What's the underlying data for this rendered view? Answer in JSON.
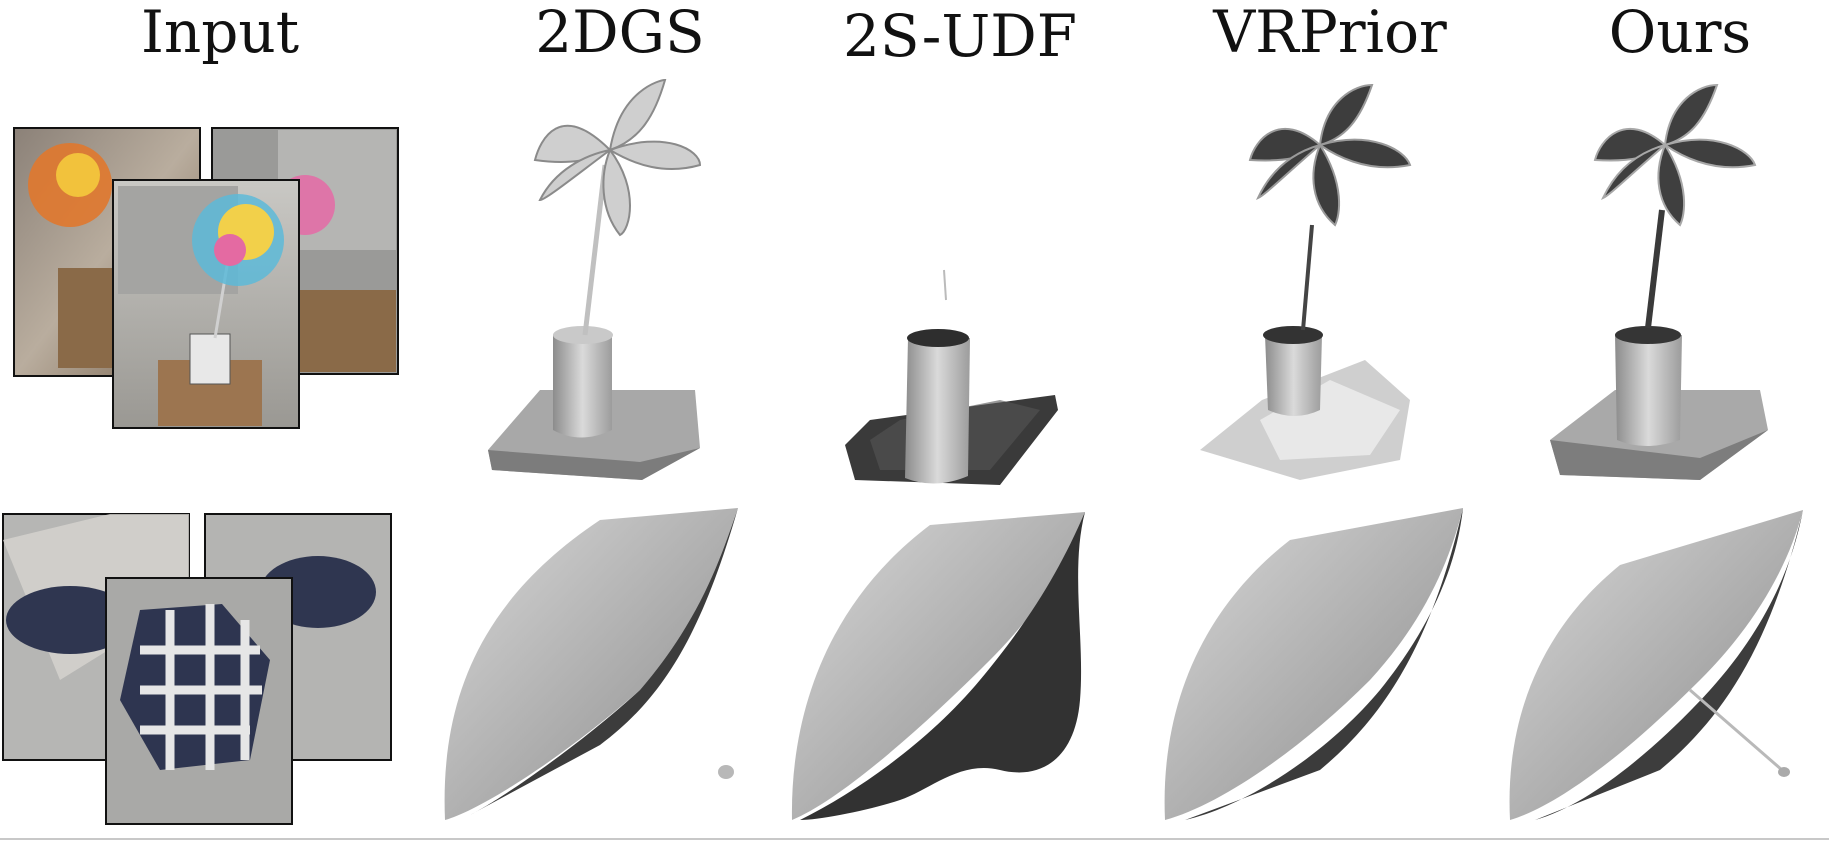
{
  "columns": {
    "input": "Input",
    "m1": "2DGS",
    "m2": "2S-UDF",
    "m3": "VRPrior",
    "m4": "Ours"
  },
  "rows": [
    {
      "scene": "pinwheel"
    },
    {
      "scene": "umbrella"
    }
  ],
  "colors": {
    "mesh_light": "#b8b8b8",
    "mesh_mid": "#8f8f8f",
    "mesh_dark": "#3e3e3e",
    "photo_frame": "#111111"
  }
}
